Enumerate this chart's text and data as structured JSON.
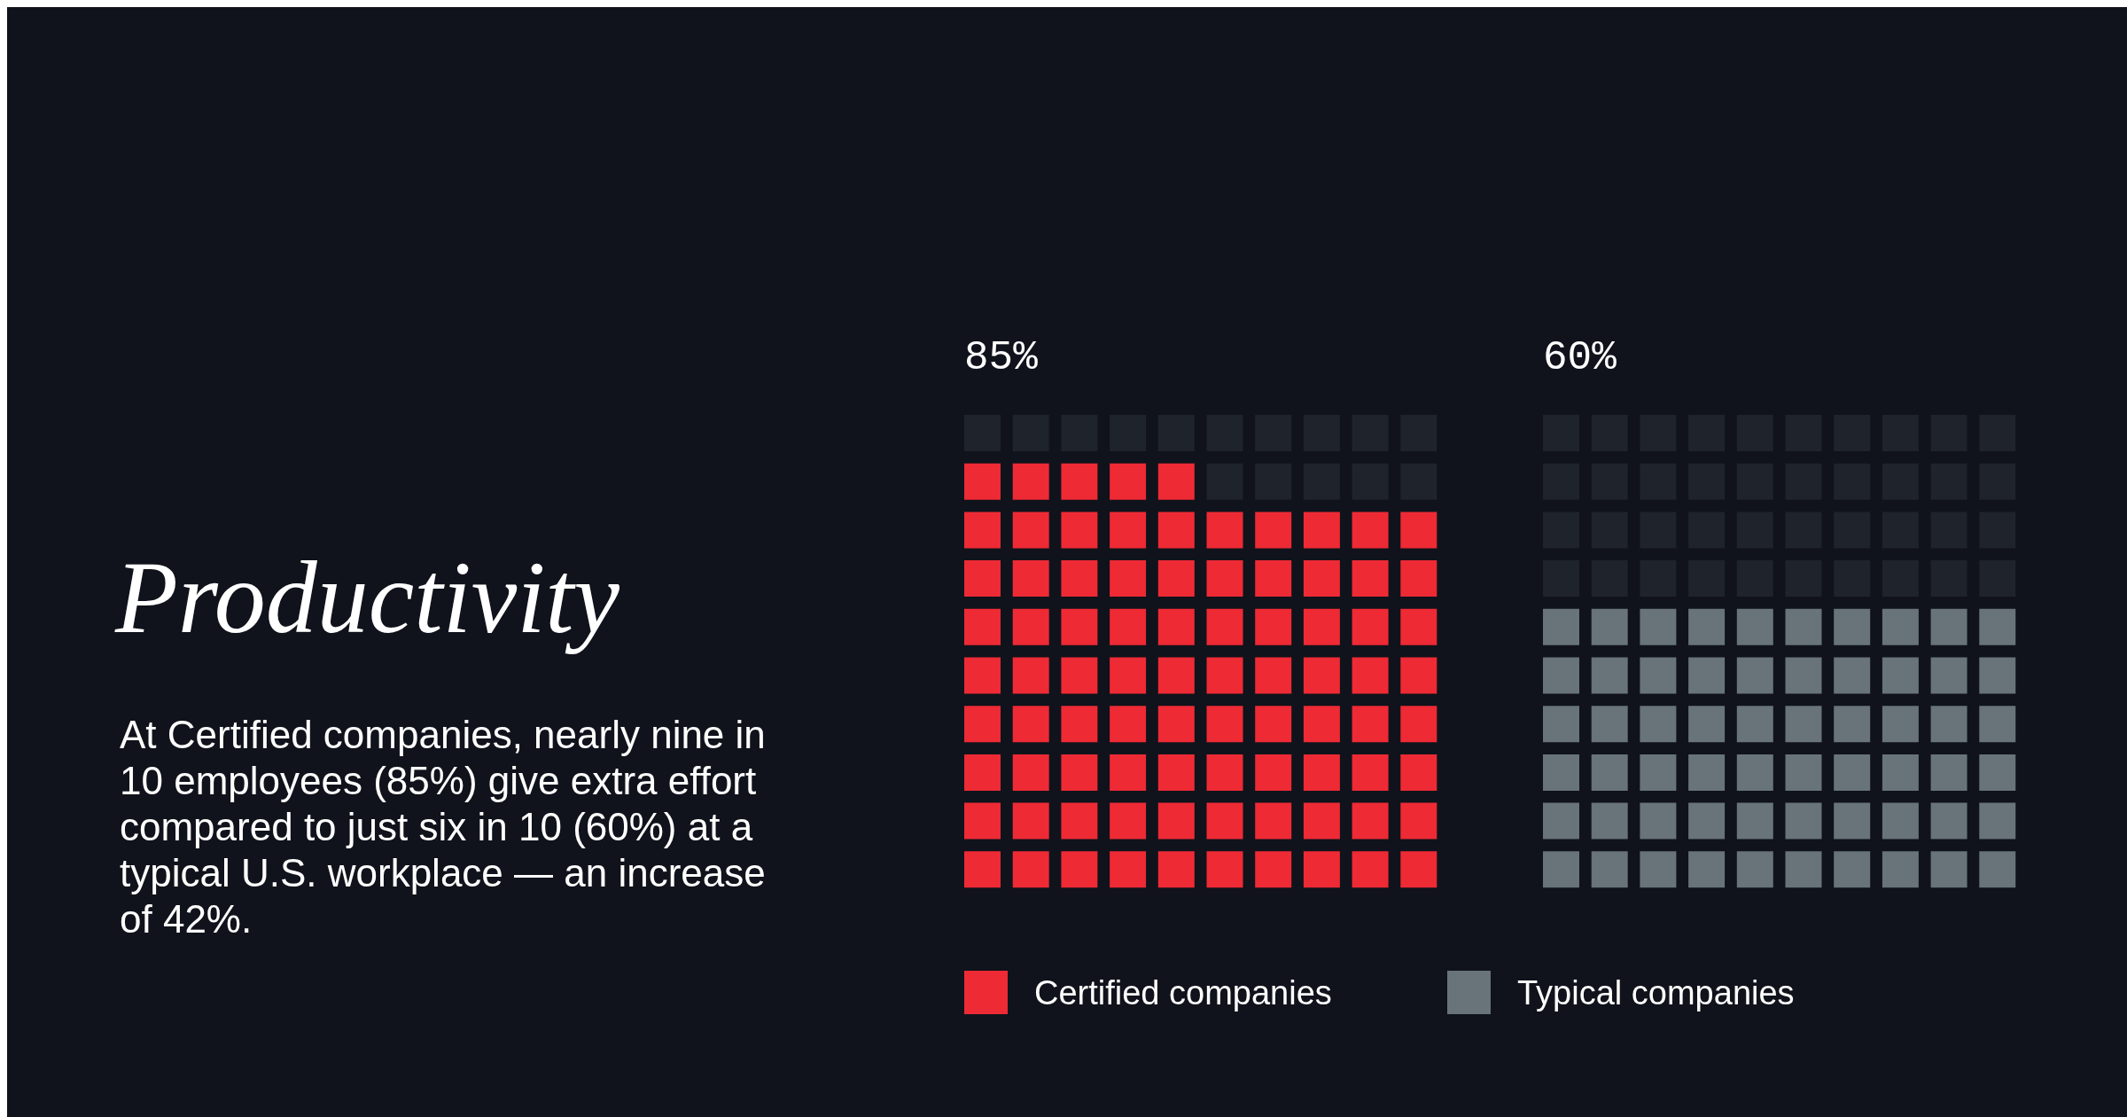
{
  "chart_data": {
    "type": "other",
    "title": "Productivity",
    "categories": [
      "Certified companies",
      "Typical companies"
    ],
    "values": [
      85,
      60
    ],
    "value_labels": [
      "85%",
      "60%"
    ],
    "colors": [
      "#ee2a35",
      "#68737a"
    ],
    "annotations": [
      "At Certified companies, nearly nine in 10 employees (85%) give extra effort compared to just six in 10 (60%) at a typical U.S. workplace — an increase of 42%."
    ]
  }
}
